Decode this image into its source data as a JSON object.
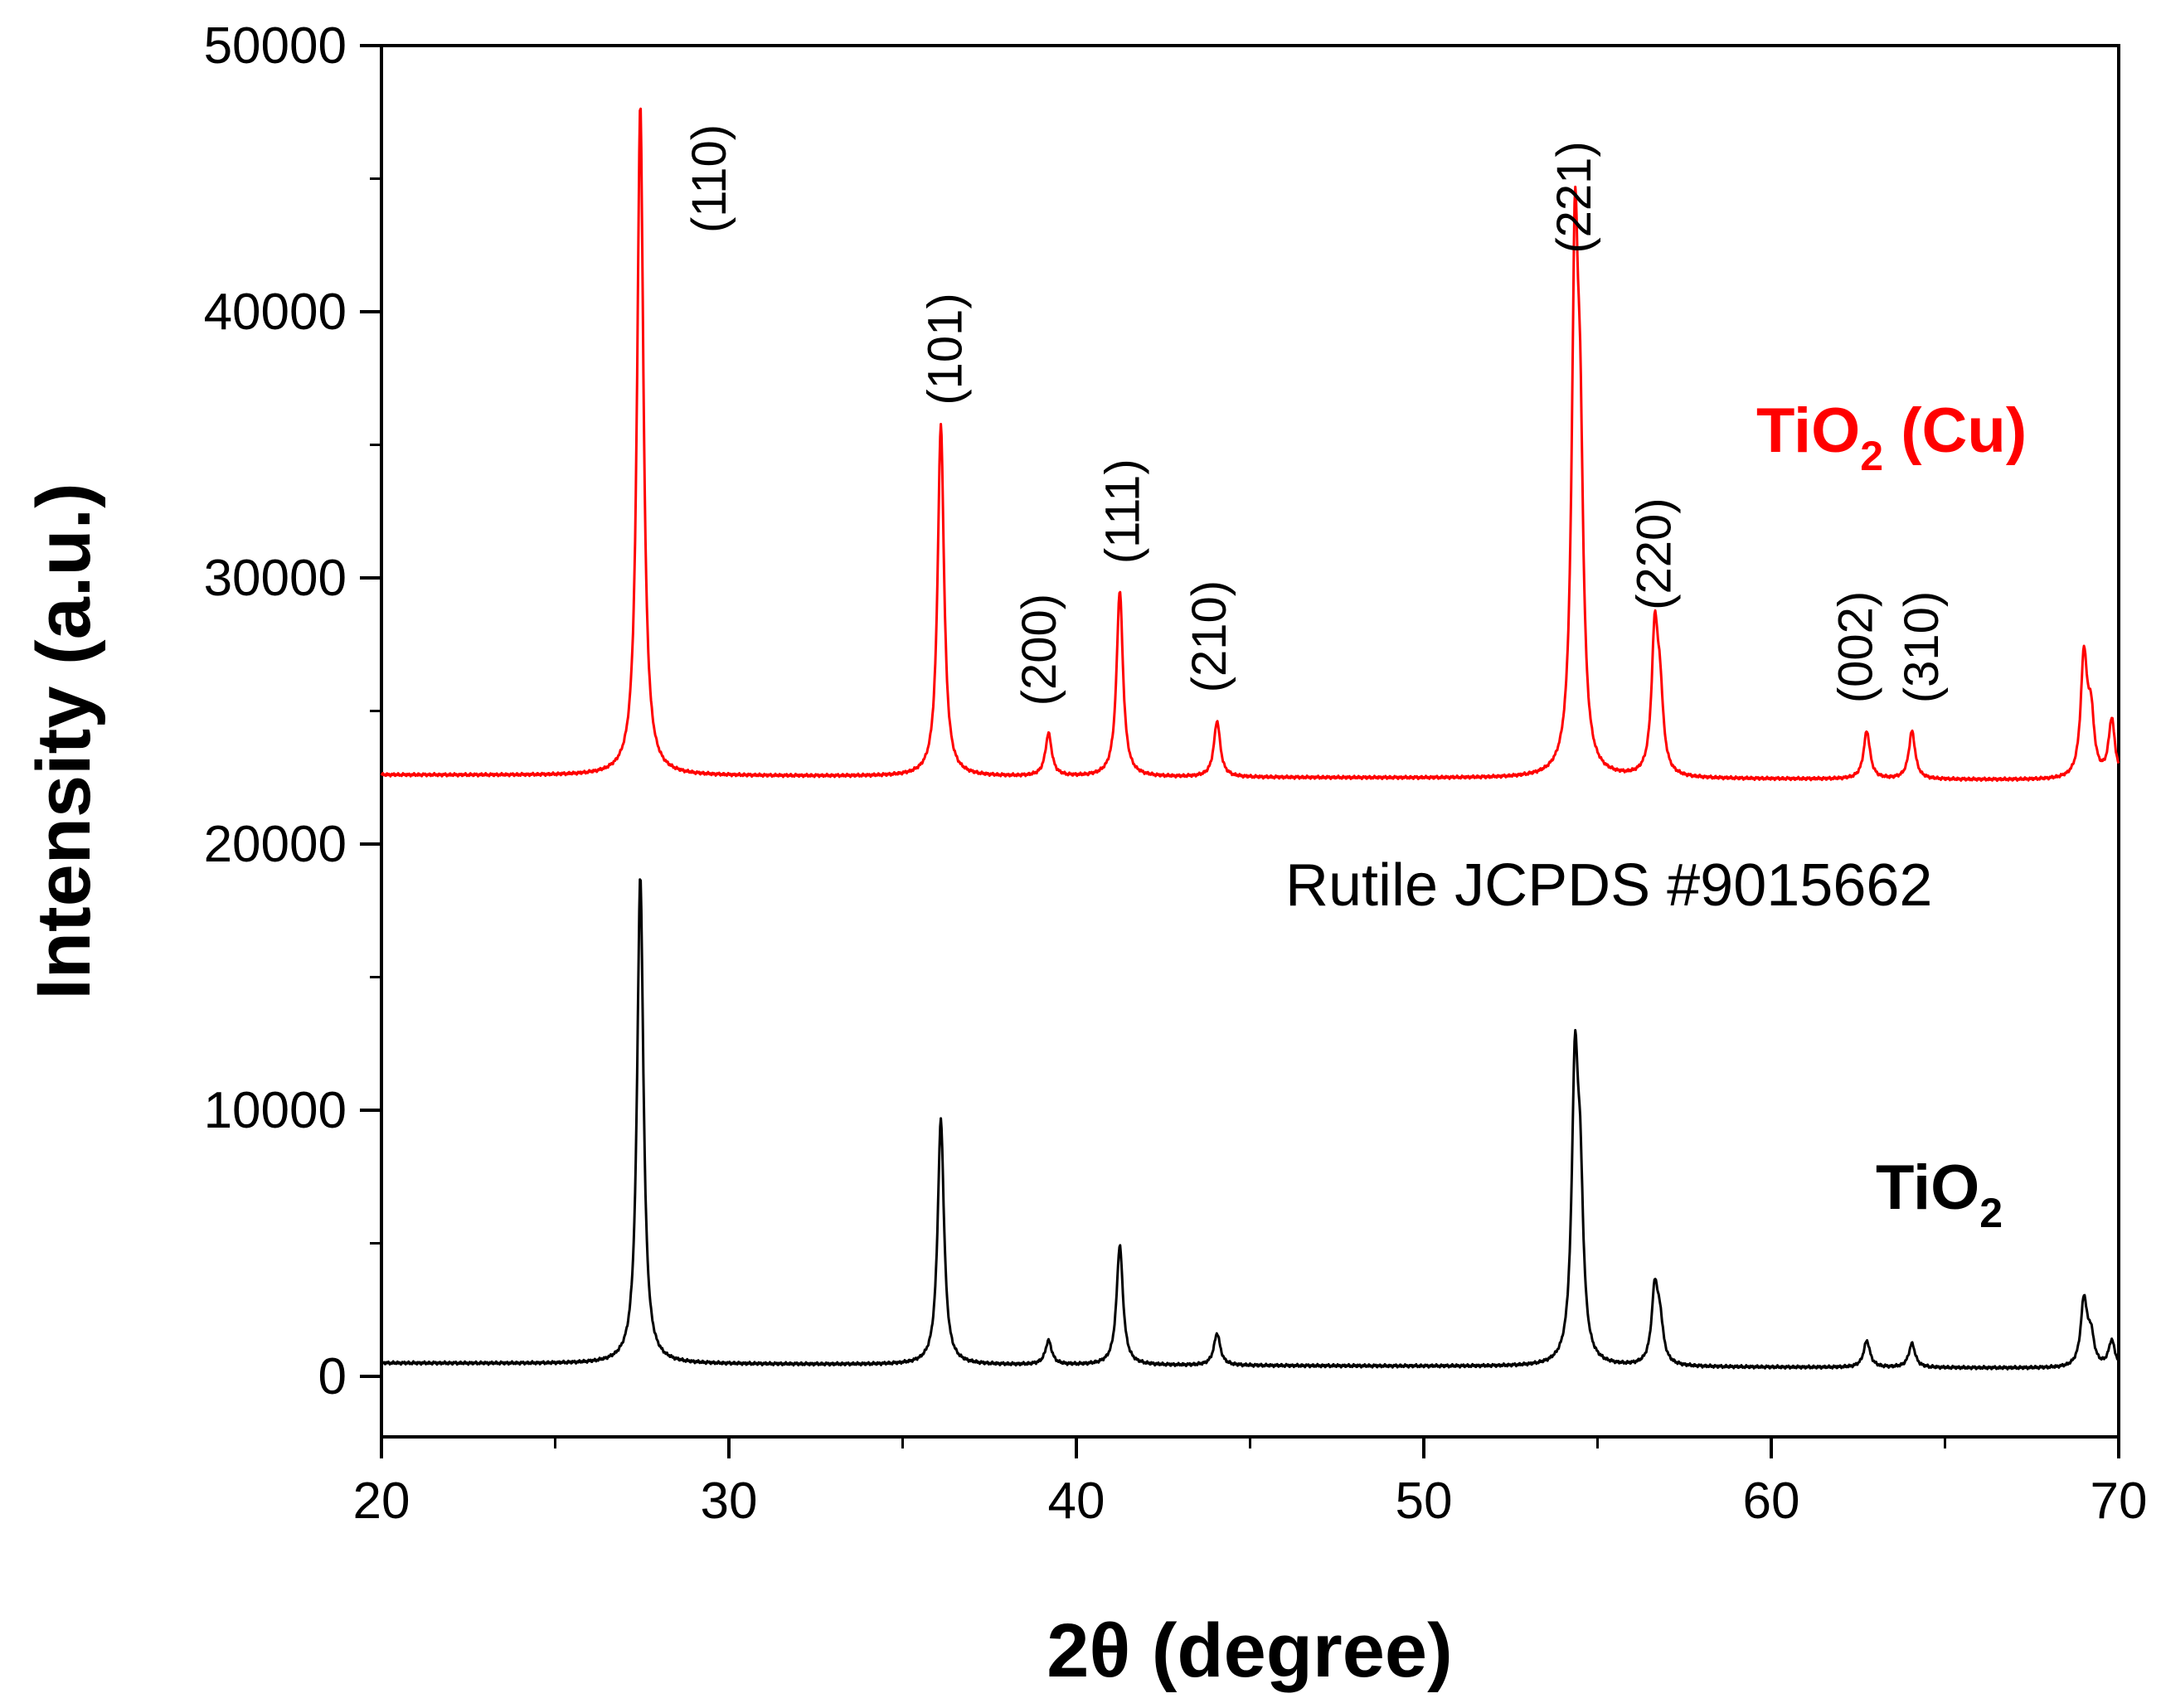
{
  "chart_data": {
    "type": "line",
    "title": "",
    "xlabel": "2θ (degree)",
    "ylabel": "Intensity (a.u.)",
    "xlim": [
      20,
      70
    ],
    "ylim": [
      -2400,
      50000
    ],
    "x_ticks": [
      20,
      30,
      40,
      50,
      60,
      70
    ],
    "x_tick_labels": [
      "20",
      "30",
      "40",
      "50",
      "60",
      "70"
    ],
    "y_ticks": [
      0,
      10000,
      20000,
      30000,
      40000,
      50000
    ],
    "y_tick_labels": [
      "0",
      "10000",
      "20000",
      "30000",
      "40000",
      "50000"
    ],
    "grid": false,
    "series": [
      {
        "name": "TiO2 (Cu)",
        "label_main": "TiO",
        "label_sub": "2",
        "label_tail": " (Cu)",
        "color": "#ff0000",
        "baseline": 22600,
        "peaks": [
          {
            "x": 27.45,
            "y": 47800
          },
          {
            "x": 36.1,
            "y": 35800
          },
          {
            "x": 39.2,
            "y": 24200
          },
          {
            "x": 41.25,
            "y": 29600
          },
          {
            "x": 44.05,
            "y": 24700
          },
          {
            "x": 54.35,
            "y": 41200
          },
          {
            "x": 54.5,
            "y": 32500
          },
          {
            "x": 56.65,
            "y": 27900
          },
          {
            "x": 56.8,
            "y": 25200
          },
          {
            "x": 62.75,
            "y": 24400
          },
          {
            "x": 64.05,
            "y": 24400
          },
          {
            "x": 69.0,
            "y": 27100
          },
          {
            "x": 69.2,
            "y": 24800
          },
          {
            "x": 69.8,
            "y": 24800
          }
        ]
      },
      {
        "name": "TiO2",
        "label_main": "TiO",
        "label_sub": "2",
        "label_tail": "",
        "color": "#000000",
        "baseline": 500,
        "peaks": [
          {
            "x": 27.45,
            "y": 18800
          },
          {
            "x": 36.1,
            "y": 9700
          },
          {
            "x": 39.2,
            "y": 1400
          },
          {
            "x": 41.25,
            "y": 5000
          },
          {
            "x": 44.05,
            "y": 1700
          },
          {
            "x": 54.35,
            "y": 11000
          },
          {
            "x": 54.5,
            "y": 6200
          },
          {
            "x": 56.65,
            "y": 3300
          },
          {
            "x": 56.8,
            "y": 1900
          },
          {
            "x": 62.75,
            "y": 1500
          },
          {
            "x": 64.05,
            "y": 1400
          },
          {
            "x": 69.0,
            "y": 3000
          },
          {
            "x": 69.2,
            "y": 1600
          },
          {
            "x": 69.8,
            "y": 1500
          }
        ]
      }
    ],
    "annotations": [
      {
        "text": "(110)",
        "x": 29.9,
        "y": 45000
      },
      {
        "text": "(101)",
        "x": 36.7,
        "y": 38600
      },
      {
        "text": "(200)",
        "x": 39.4,
        "y": 27300
      },
      {
        "text": "(111)",
        "x": 41.8,
        "y": 32500
      },
      {
        "text": "(210)",
        "x": 44.3,
        "y": 27800
      },
      {
        "text": "(221)",
        "x": 54.8,
        "y": 44300
      },
      {
        "text": "(220)",
        "x": 57.1,
        "y": 30900
      },
      {
        "text": "(002)",
        "x": 62.9,
        "y": 27400
      },
      {
        "text": "(310)",
        "x": 64.8,
        "y": 27400
      }
    ],
    "reference_label": "Rutile JCPDS #9015662"
  }
}
